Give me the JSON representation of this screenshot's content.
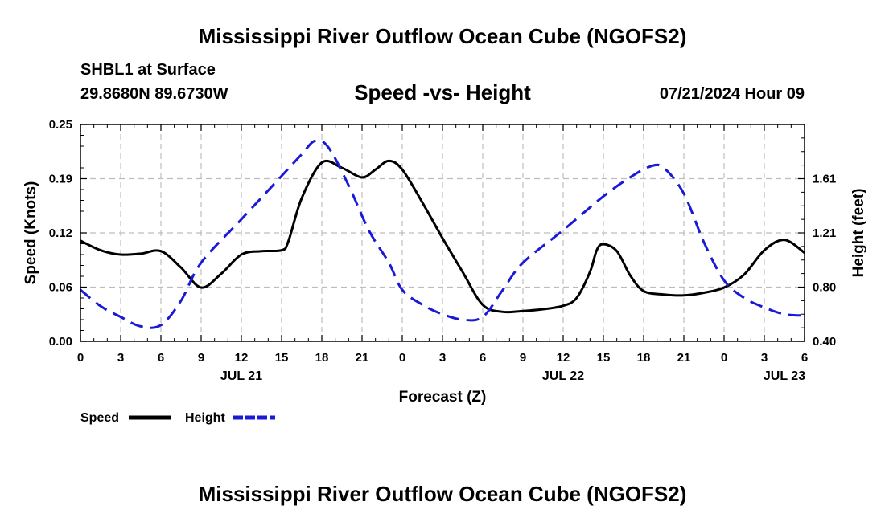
{
  "header": {
    "title": "Mississippi River Outflow Ocean Cube (NGOFS2)",
    "station": "SHBL1 at Surface",
    "coords": "29.8680N  89.6730W",
    "subtitle": "Speed -vs- Height",
    "datetime": "07/21/2024 Hour 09"
  },
  "footer": {
    "title": "Mississippi River Outflow Ocean Cube (NGOFS2)"
  },
  "chart_data": {
    "type": "line",
    "title": "Speed -vs- Height",
    "xlabel": "Forecast (Z)",
    "ylabel": "Speed (Knots)",
    "y2label": "Height (feet)",
    "xlim": [
      0,
      54
    ],
    "ylim": [
      0,
      0.25
    ],
    "y2lim": [
      0.4,
      2.0
    ],
    "x_ticks": [
      0,
      3,
      6,
      9,
      12,
      15,
      18,
      21,
      24,
      27,
      30,
      33,
      36,
      39,
      42,
      45,
      48,
      51,
      54
    ],
    "x_tick_labels": [
      "0",
      "3",
      "6",
      "9",
      "12",
      "15",
      "18",
      "21",
      "0",
      "3",
      "6",
      "9",
      "12",
      "15",
      "18",
      "21",
      "0",
      "3",
      "6"
    ],
    "day_labels": [
      {
        "x": 12,
        "label": "JUL 21"
      },
      {
        "x": 36,
        "label": "JUL 22"
      },
      {
        "x": 52.5,
        "label": "JUL 23"
      }
    ],
    "y_ticks": [
      0,
      0.0625,
      0.125,
      0.1875,
      0.25
    ],
    "y_tick_labels": [
      "0.00",
      "0.06",
      "0.12",
      "0.19",
      "0.25"
    ],
    "y2_ticks": [
      0.4,
      0.8,
      1.2,
      1.6
    ],
    "y2_tick_labels": [
      "0.40",
      "0.80",
      "1.21",
      "1.61"
    ],
    "grid": true,
    "legend_position": "bottom-left",
    "series": [
      {
        "name": "Speed",
        "axis": "left",
        "color": "#000000",
        "dash": "solid",
        "x": [
          0,
          1.5,
          3,
          4.5,
          6,
          7.5,
          9,
          10.5,
          12,
          13.5,
          15,
          15.5,
          16.5,
          18,
          19.5,
          21,
          22,
          23,
          24,
          25.5,
          27,
          28.5,
          30,
          31.5,
          33,
          34.5,
          36,
          37,
          38,
          38.5,
          39,
          40,
          41,
          42,
          43.5,
          45,
          46.5,
          48,
          49.5,
          51,
          52.5,
          54
        ],
        "y": [
          0.116,
          0.105,
          0.1,
          0.101,
          0.104,
          0.085,
          0.062,
          0.078,
          0.1,
          0.104,
          0.105,
          0.115,
          0.165,
          0.206,
          0.2,
          0.189,
          0.198,
          0.208,
          0.198,
          0.16,
          0.119,
          0.08,
          0.042,
          0.034,
          0.035,
          0.037,
          0.041,
          0.05,
          0.08,
          0.105,
          0.112,
          0.104,
          0.076,
          0.058,
          0.054,
          0.053,
          0.056,
          0.062,
          0.077,
          0.105,
          0.117,
          0.102
        ]
      },
      {
        "name": "Height",
        "axis": "right",
        "color": "#1a1ad6",
        "dash": "dashed",
        "x": [
          0,
          1.5,
          3,
          4.5,
          6,
          7.5,
          9,
          12,
          15,
          16.5,
          17.5,
          18.5,
          20,
          21.5,
          23,
          24,
          25.5,
          27,
          28.5,
          30,
          31.5,
          33,
          36,
          39,
          41,
          42.5,
          43.5,
          45,
          46.5,
          48,
          49.5,
          51,
          52.5,
          54
        ],
        "y": [
          0.78,
          0.66,
          0.58,
          0.51,
          0.52,
          0.7,
          0.98,
          1.3,
          1.62,
          1.78,
          1.88,
          1.83,
          1.55,
          1.22,
          0.98,
          0.78,
          0.67,
          0.6,
          0.56,
          0.58,
          0.78,
          0.98,
          1.22,
          1.47,
          1.61,
          1.69,
          1.68,
          1.49,
          1.13,
          0.85,
          0.72,
          0.65,
          0.6,
          0.59
        ]
      }
    ]
  }
}
